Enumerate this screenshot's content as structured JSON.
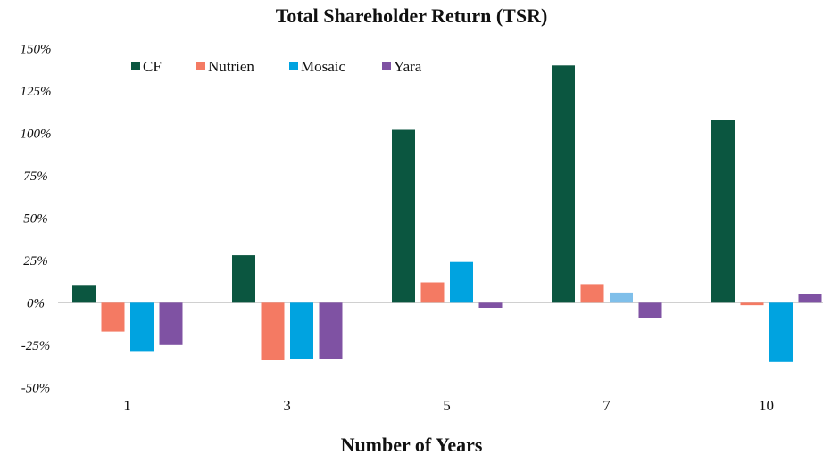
{
  "chart_data": {
    "type": "bar",
    "title": "Total Shareholder Return (TSR)",
    "xlabel": "Number of Years",
    "ylabel": "",
    "categories": [
      "1",
      "3",
      "5",
      "7",
      "10"
    ],
    "ylim": [
      -50,
      150
    ],
    "yticks": [
      150,
      125,
      100,
      75,
      50,
      25,
      0,
      -25,
      -50
    ],
    "ytick_labels": [
      "150%",
      "125%",
      "100%",
      "75%",
      "50%",
      "25%",
      "0%",
      "-25%",
      "-50%"
    ],
    "grid": false,
    "legend": "top-left",
    "series": [
      {
        "name": "CF",
        "color": "#0b5640",
        "values": [
          10,
          28,
          102,
          140,
          108
        ]
      },
      {
        "name": "Nutrien",
        "color": "#f47a63",
        "values": [
          -17,
          -34,
          12,
          11,
          -1.5
        ]
      },
      {
        "name": "Mosaic",
        "color": "#00a3e0",
        "values": [
          -29,
          -33,
          24,
          6,
          -35
        ],
        "point_colors": {
          "3": "#7fbfea"
        }
      },
      {
        "name": "Yara",
        "color": "#7f52a3",
        "values": [
          -25,
          -33,
          -3,
          -9,
          5
        ]
      }
    ]
  }
}
